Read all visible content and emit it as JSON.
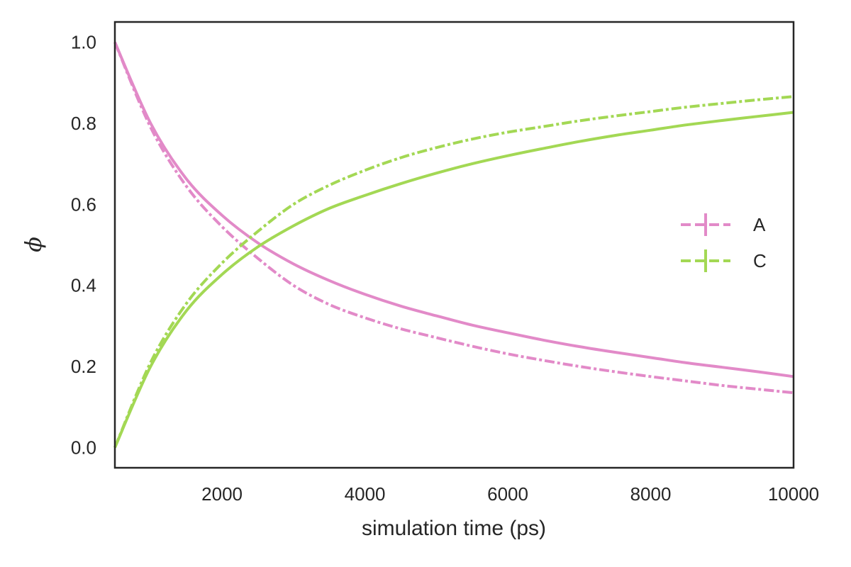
{
  "chart_data": {
    "type": "line",
    "xlabel": "simulation time (ps)",
    "ylabel": "ϕ",
    "xlim": [
      500,
      10000
    ],
    "ylim": [
      -0.05,
      1.05
    ],
    "xticks": [
      2000,
      4000,
      6000,
      8000,
      10000
    ],
    "yticks": [
      0.0,
      0.2,
      0.4,
      0.6,
      0.8,
      1.0
    ],
    "ytick_labels": [
      "0.0",
      "0.2",
      "0.4",
      "0.6",
      "0.8",
      "1.0"
    ],
    "grid": false,
    "legend_position": "center-right",
    "x": [
      500,
      1000,
      1500,
      2000,
      2500,
      3000,
      3500,
      4000,
      4500,
      5000,
      5500,
      6000,
      6500,
      7000,
      7500,
      8000,
      8500,
      9000,
      9500,
      10000
    ],
    "series": [
      {
        "name": "A",
        "color": "#e28ac8",
        "solid": [
          1.0,
          0.8,
          0.663,
          0.573,
          0.505,
          0.453,
          0.412,
          0.378,
          0.349,
          0.325,
          0.302,
          0.283,
          0.265,
          0.249,
          0.235,
          0.222,
          0.209,
          0.198,
          0.187,
          0.175
        ],
        "dashdot": [
          1.0,
          0.79,
          0.645,
          0.545,
          0.467,
          0.4,
          0.353,
          0.32,
          0.293,
          0.271,
          0.25,
          0.231,
          0.215,
          0.2,
          0.187,
          0.175,
          0.164,
          0.153,
          0.144,
          0.135
        ]
      },
      {
        "name": "C",
        "color": "#a3d854",
        "solid": [
          0.0,
          0.2,
          0.337,
          0.427,
          0.495,
          0.547,
          0.59,
          0.622,
          0.651,
          0.677,
          0.7,
          0.72,
          0.738,
          0.755,
          0.77,
          0.783,
          0.796,
          0.807,
          0.817,
          0.827
        ],
        "dashdot": [
          0.0,
          0.21,
          0.355,
          0.455,
          0.533,
          0.6,
          0.647,
          0.684,
          0.715,
          0.74,
          0.761,
          0.778,
          0.792,
          0.806,
          0.818,
          0.829,
          0.84,
          0.849,
          0.858,
          0.866
        ]
      }
    ]
  }
}
